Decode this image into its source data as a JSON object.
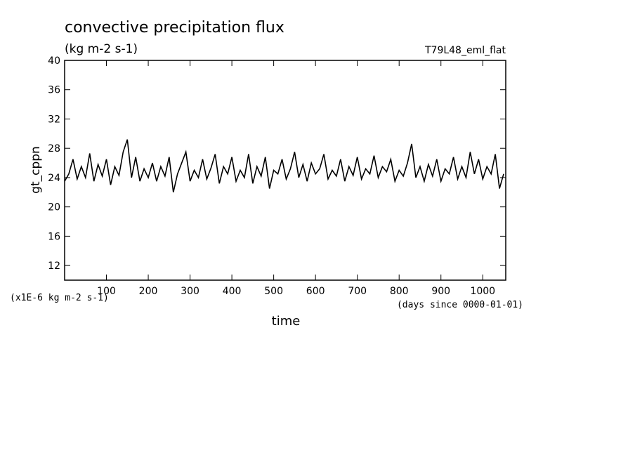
{
  "chart_data": {
    "type": "line",
    "title": "convective precipitation flux",
    "subtitle": "(kg m-2 s-1)",
    "annotation": "T79L48_eml_flat",
    "ylabel": "gt_cppn",
    "xlabel": "time",
    "yunit": "(x1E-6 kg m-2 s-1)",
    "xunit": "(days since 0000-01-01)",
    "x": [
      0,
      10,
      20,
      30,
      40,
      50,
      60,
      70,
      80,
      90,
      100,
      110,
      120,
      130,
      140,
      150,
      160,
      170,
      180,
      190,
      200,
      210,
      220,
      230,
      240,
      250,
      260,
      270,
      280,
      290,
      300,
      310,
      320,
      330,
      340,
      350,
      360,
      370,
      380,
      390,
      400,
      410,
      420,
      430,
      440,
      450,
      460,
      470,
      480,
      490,
      500,
      510,
      520,
      530,
      540,
      550,
      560,
      570,
      580,
      590,
      600,
      610,
      620,
      630,
      640,
      650,
      660,
      670,
      680,
      690,
      700,
      710,
      720,
      730,
      740,
      750,
      760,
      770,
      780,
      790,
      800,
      810,
      820,
      830,
      840,
      850,
      860,
      870,
      880,
      890,
      900,
      910,
      920,
      930,
      940,
      950,
      960,
      970,
      980,
      990,
      1000,
      1010,
      1020,
      1030,
      1040,
      1050
    ],
    "series": [
      {
        "name": "gt_cppn",
        "color": "#000000",
        "values": [
          23.5,
          24.5,
          26.5,
          23.8,
          25.5,
          24,
          27.3,
          23.5,
          25.8,
          24.2,
          26.5,
          23,
          25.5,
          24.3,
          27.5,
          29.2,
          24,
          26.8,
          23.5,
          25.2,
          24,
          26,
          23.5,
          25.5,
          24.2,
          26.8,
          22,
          24.5,
          26,
          27.5,
          23.5,
          25,
          24,
          26.5,
          23.8,
          25.3,
          27.2,
          23.2,
          25.5,
          24.5,
          26.8,
          23.5,
          25,
          24,
          27.2,
          23.2,
          25.5,
          24.2,
          26.8,
          22.5,
          25,
          24.5,
          26.5,
          23.8,
          25.2,
          27.5,
          24,
          25.8,
          23.5,
          26,
          24.5,
          25.2,
          27.2,
          23.8,
          25,
          24.2,
          26.5,
          23.5,
          25.5,
          24.3,
          26.8,
          23.8,
          25.2,
          24.5,
          27,
          24,
          25.5,
          24.8,
          26.5,
          23.5,
          25,
          24.2,
          26,
          28.6,
          24,
          25.5,
          23.5,
          25.8,
          24.2,
          26.5,
          23.5,
          25.2,
          24.5,
          26.8,
          23.8,
          25.5,
          24,
          27.5,
          24.5,
          26.5,
          23.8,
          25.5,
          24.5,
          27.2,
          22.5,
          24.5
        ]
      }
    ],
    "xlim": [
      0,
      1055
    ],
    "ylim": [
      10,
      40
    ],
    "xticks": [
      100,
      200,
      300,
      400,
      500,
      600,
      700,
      800,
      900,
      1000
    ],
    "yticks": [
      12,
      16,
      20,
      24,
      28,
      32,
      36,
      40
    ]
  }
}
